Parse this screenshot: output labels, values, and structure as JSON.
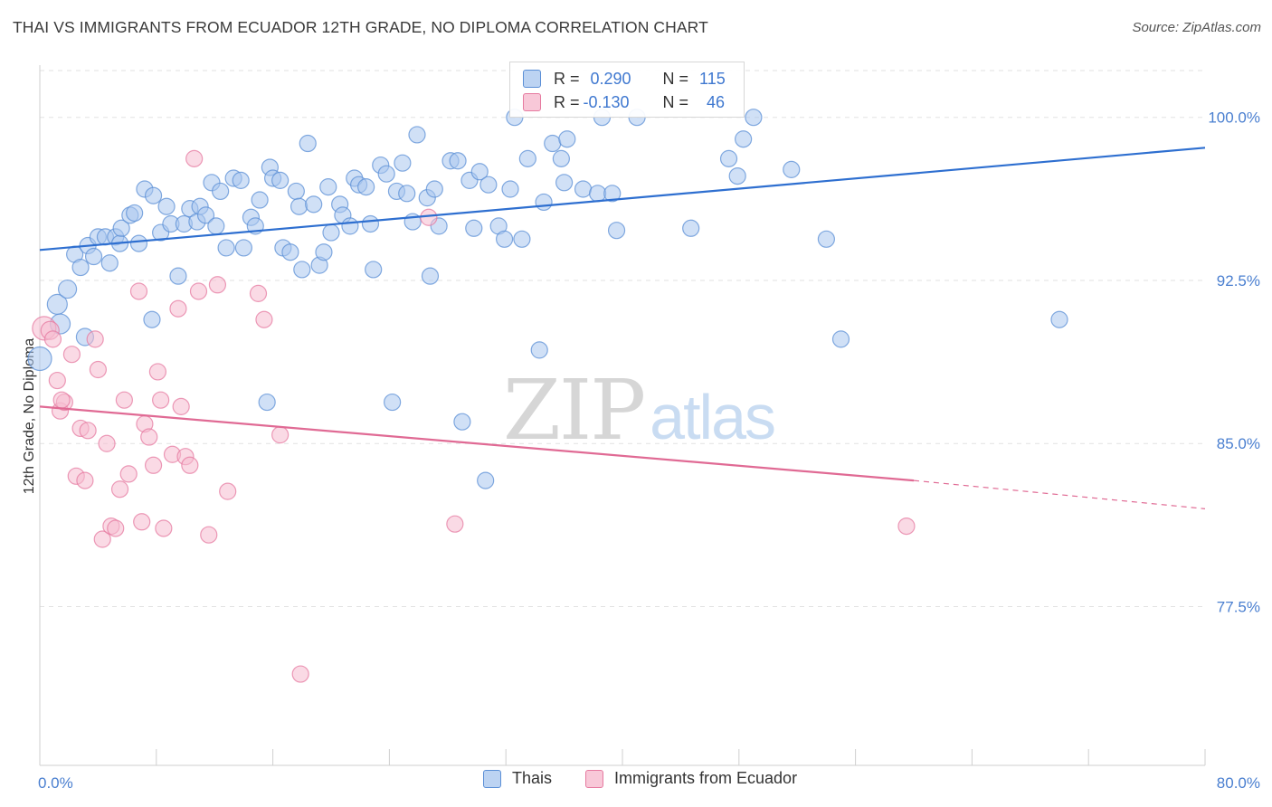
{
  "title": "THAI VS IMMIGRANTS FROM ECUADOR 12TH GRADE, NO DIPLOMA CORRELATION CHART",
  "source": "Source: ZipAtlas.com",
  "watermark": {
    "zip": "ZIP",
    "atlas": "atlas"
  },
  "stats": [
    {
      "r_label": "R =",
      "r_value": "0.290",
      "n_label": "N =",
      "n_value": "115"
    },
    {
      "r_label": "R =",
      "r_value": "-0.130",
      "n_label": "N =",
      "n_value": "46"
    }
  ],
  "legend": [
    {
      "label": "Thais"
    },
    {
      "label": "Immigrants from Ecuador"
    }
  ],
  "colors": {
    "blue_fill": "#a9c6ee",
    "blue_stroke": "#5b8fd6",
    "blue_line": "#2e6fd0",
    "pink_fill": "#f6bccf",
    "pink_stroke": "#e67aa0",
    "pink_line": "#e06a94",
    "axis_text": "#4a7fd0"
  },
  "chart_data": {
    "type": "scatter",
    "xlabel": "",
    "ylabel": "12th Grade, No Diploma",
    "xlim": [
      0,
      80
    ],
    "ylim": [
      70.2,
      102.4
    ],
    "x_tick_labels": [
      "0.0%",
      "80.0%"
    ],
    "y_ticks": [
      77.5,
      85.0,
      92.5,
      100.0
    ],
    "y_tick_labels": [
      "77.5%",
      "85.0%",
      "92.5%",
      "100.0%"
    ],
    "grid": true,
    "series": [
      {
        "name": "Thais",
        "regression": {
          "x": [
            0,
            80
          ],
          "y": [
            93.9,
            98.6
          ]
        },
        "points": [
          [
            0.0,
            88.9,
            26
          ],
          [
            1.2,
            91.4,
            22
          ],
          [
            1.4,
            90.5,
            22
          ],
          [
            1.9,
            92.1,
            20
          ],
          [
            2.4,
            93.7,
            18
          ],
          [
            2.8,
            93.1,
            18
          ],
          [
            3.1,
            89.9,
            19
          ],
          [
            3.3,
            94.1,
            18
          ],
          [
            3.7,
            93.6,
            18
          ],
          [
            4.0,
            94.5,
            18
          ],
          [
            4.5,
            94.5,
            18
          ],
          [
            4.8,
            93.3,
            18
          ],
          [
            5.2,
            94.5,
            18
          ],
          [
            5.5,
            94.2,
            18
          ],
          [
            5.6,
            94.9,
            18
          ],
          [
            6.2,
            95.5,
            18
          ],
          [
            6.5,
            95.6,
            18
          ],
          [
            6.8,
            94.2,
            18
          ],
          [
            7.2,
            96.7,
            18
          ],
          [
            7.8,
            96.4,
            18
          ],
          [
            8.3,
            94.7,
            18
          ],
          [
            8.7,
            95.9,
            18
          ],
          [
            9.0,
            95.1,
            18
          ],
          [
            9.5,
            92.7,
            18
          ],
          [
            7.7,
            90.7,
            18
          ],
          [
            9.9,
            95.1,
            18
          ],
          [
            10.3,
            95.8,
            18
          ],
          [
            10.8,
            95.2,
            18
          ],
          [
            11.0,
            95.9,
            18
          ],
          [
            11.4,
            95.5,
            18
          ],
          [
            11.8,
            97.0,
            18
          ],
          [
            12.1,
            95.0,
            18
          ],
          [
            12.4,
            96.6,
            18
          ],
          [
            12.8,
            94.0,
            18
          ],
          [
            13.3,
            97.2,
            18
          ],
          [
            13.8,
            97.1,
            18
          ],
          [
            14.0,
            94.0,
            18
          ],
          [
            14.5,
            95.4,
            18
          ],
          [
            14.8,
            95.0,
            18
          ],
          [
            15.1,
            96.2,
            18
          ],
          [
            15.6,
            86.9,
            18
          ],
          [
            15.8,
            97.7,
            18
          ],
          [
            16.0,
            97.2,
            18
          ],
          [
            16.5,
            97.1,
            18
          ],
          [
            16.7,
            94.0,
            18
          ],
          [
            17.2,
            93.8,
            18
          ],
          [
            17.6,
            96.6,
            18
          ],
          [
            17.8,
            95.9,
            18
          ],
          [
            18.0,
            93.0,
            18
          ],
          [
            18.4,
            98.8,
            18
          ],
          [
            18.8,
            96.0,
            18
          ],
          [
            19.2,
            93.2,
            18
          ],
          [
            19.5,
            93.8,
            18
          ],
          [
            19.8,
            96.8,
            18
          ],
          [
            20.0,
            94.7,
            18
          ],
          [
            20.6,
            96.0,
            18
          ],
          [
            20.8,
            95.5,
            18
          ],
          [
            21.3,
            95.0,
            18
          ],
          [
            21.6,
            97.2,
            18
          ],
          [
            21.9,
            96.9,
            18
          ],
          [
            22.4,
            96.8,
            18
          ],
          [
            22.7,
            95.1,
            18
          ],
          [
            22.9,
            93.0,
            18
          ],
          [
            23.4,
            97.8,
            18
          ],
          [
            23.8,
            97.4,
            18
          ],
          [
            24.2,
            86.9,
            18
          ],
          [
            24.5,
            96.6,
            18
          ],
          [
            24.9,
            97.9,
            18
          ],
          [
            25.2,
            96.5,
            18
          ],
          [
            25.6,
            95.2,
            18
          ],
          [
            25.9,
            99.2,
            18
          ],
          [
            26.6,
            96.3,
            18
          ],
          [
            26.8,
            92.7,
            18
          ],
          [
            27.1,
            96.7,
            18
          ],
          [
            27.4,
            95.0,
            18
          ],
          [
            28.2,
            98.0,
            18
          ],
          [
            28.7,
            98.0,
            18
          ],
          [
            29.0,
            86.0,
            18
          ],
          [
            29.5,
            97.1,
            18
          ],
          [
            29.8,
            94.9,
            18
          ],
          [
            30.2,
            97.5,
            18
          ],
          [
            30.8,
            96.9,
            18
          ],
          [
            31.5,
            95.0,
            18
          ],
          [
            31.9,
            94.4,
            18
          ],
          [
            32.3,
            96.7,
            18
          ],
          [
            32.6,
            100.0,
            18
          ],
          [
            33.1,
            94.4,
            18
          ],
          [
            33.5,
            98.1,
            18
          ],
          [
            34.3,
            89.3,
            18
          ],
          [
            34.6,
            96.1,
            18
          ],
          [
            35.2,
            98.8,
            18
          ],
          [
            35.8,
            98.1,
            18
          ],
          [
            36.0,
            97.0,
            18
          ],
          [
            36.2,
            99.0,
            18
          ],
          [
            37.3,
            96.7,
            18
          ],
          [
            38.3,
            96.5,
            18
          ],
          [
            38.6,
            100.0,
            18
          ],
          [
            39.3,
            96.5,
            18
          ],
          [
            39.6,
            94.8,
            18
          ],
          [
            41.0,
            100.0,
            18
          ],
          [
            44.7,
            94.9,
            18
          ],
          [
            47.3,
            98.1,
            18
          ],
          [
            47.9,
            97.3,
            18
          ],
          [
            48.3,
            99.0,
            18
          ],
          [
            49.0,
            100.0,
            18
          ],
          [
            51.6,
            97.6,
            18
          ],
          [
            54.0,
            94.4,
            18
          ],
          [
            55.0,
            89.8,
            18
          ],
          [
            70.0,
            90.7,
            18
          ],
          [
            30.6,
            83.3,
            18
          ]
        ]
      },
      {
        "name": "Immigrants from Ecuador",
        "regression": {
          "x": [
            0,
            60
          ],
          "y": [
            86.7,
            83.3
          ]
        },
        "regression_dashed": {
          "x": [
            60,
            80
          ],
          "y": [
            83.3,
            82.0
          ]
        },
        "points": [
          [
            0.3,
            90.3,
            26
          ],
          [
            0.7,
            90.2,
            20
          ],
          [
            0.9,
            89.8,
            18
          ],
          [
            1.2,
            87.9,
            18
          ],
          [
            1.4,
            86.5,
            18
          ],
          [
            1.7,
            86.9,
            18
          ],
          [
            2.2,
            89.1,
            18
          ],
          [
            2.5,
            83.5,
            18
          ],
          [
            2.8,
            85.7,
            18
          ],
          [
            3.1,
            83.3,
            18
          ],
          [
            3.3,
            85.6,
            18
          ],
          [
            3.8,
            89.8,
            18
          ],
          [
            4.0,
            88.4,
            18
          ],
          [
            4.3,
            80.6,
            18
          ],
          [
            4.6,
            85.0,
            18
          ],
          [
            4.9,
            81.2,
            18
          ],
          [
            5.2,
            81.1,
            18
          ],
          [
            5.5,
            82.9,
            18
          ],
          [
            5.8,
            87.0,
            18
          ],
          [
            6.1,
            83.6,
            18
          ],
          [
            6.8,
            92.0,
            18
          ],
          [
            7.0,
            81.4,
            18
          ],
          [
            7.2,
            85.9,
            18
          ],
          [
            7.5,
            85.3,
            18
          ],
          [
            7.8,
            84.0,
            18
          ],
          [
            8.1,
            88.3,
            18
          ],
          [
            8.3,
            87.0,
            18
          ],
          [
            8.5,
            81.1,
            18
          ],
          [
            9.1,
            84.5,
            18
          ],
          [
            9.5,
            91.2,
            18
          ],
          [
            9.7,
            86.7,
            18
          ],
          [
            10.0,
            84.4,
            18
          ],
          [
            10.3,
            84.0,
            18
          ],
          [
            10.6,
            98.1,
            18
          ],
          [
            10.9,
            92.0,
            18
          ],
          [
            11.6,
            80.8,
            18
          ],
          [
            12.2,
            92.3,
            18
          ],
          [
            12.9,
            82.8,
            18
          ],
          [
            15.0,
            91.9,
            18
          ],
          [
            15.4,
            90.7,
            18
          ],
          [
            16.5,
            85.4,
            18
          ],
          [
            17.9,
            74.4,
            18
          ],
          [
            26.7,
            95.4,
            18
          ],
          [
            28.5,
            81.3,
            18
          ],
          [
            59.5,
            81.2,
            18
          ],
          [
            1.5,
            87.0,
            18
          ]
        ]
      }
    ]
  }
}
